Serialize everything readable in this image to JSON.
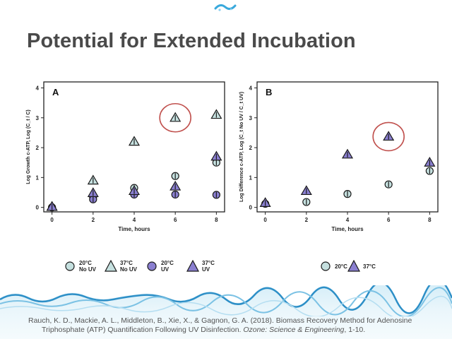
{
  "slide": {
    "title": "Potential for Extended Incubation"
  },
  "citation": {
    "line1": "Rauch, K. D., Mackie, A. L., Middleton, B., Xie, X., & Gagnon, G. A. (2018). Biomass Recovery Method for Adenosine",
    "line2_prefix": "Triphosphate (ATP) Quantification Following UV Disinfection.",
    "journal": "Ozone: Science & Engineering",
    "line2_suffix": ", 1-10."
  },
  "legend_a": [
    {
      "marker": "circle",
      "color": "#c5e0df",
      "line1": "20°C",
      "line2": "No UV"
    },
    {
      "marker": "triangle",
      "color": "#c5e0df",
      "line1": "37°C",
      "line2": "No UV"
    },
    {
      "marker": "circle",
      "color": "#8a7fd0",
      "line1": "20°C",
      "line2": "UV"
    },
    {
      "marker": "triangle",
      "color": "#8a7fd0",
      "line1": "37°C",
      "line2": "UV"
    }
  ],
  "legend_b": [
    {
      "marker": "circle",
      "color": "#c5e0df",
      "line1": "20°C",
      "line2": ""
    },
    {
      "marker": "triangle",
      "color": "#8a7fd0",
      "line1": "37°C",
      "line2": ""
    }
  ],
  "colors": {
    "no_uv_fill": "#c5e0df",
    "uv_fill": "#8a7fd0",
    "b_triangle_fill": "#8a7fd0",
    "b_circle_fill": "#c5e0df",
    "highlight_circle": "#c0504d"
  },
  "chart_data": [
    {
      "type": "scatter",
      "panel_label": "A",
      "xlabel": "Time, hours",
      "ylabel": "Log Growth c-ATP, Log (C_t / C)",
      "xlim": [
        -0.4,
        8.4
      ],
      "ylim": [
        -0.15,
        4.2
      ],
      "xticks": [
        0,
        2,
        4,
        6,
        8
      ],
      "yticks": [
        0,
        1,
        2,
        3,
        4
      ],
      "series": [
        {
          "name": "20°C No UV",
          "marker": "circle",
          "x": [
            0,
            2,
            4,
            6,
            8
          ],
          "y": [
            0.0,
            0.35,
            0.65,
            1.05,
            1.5
          ]
        },
        {
          "name": "37°C No UV",
          "marker": "triangle",
          "x": [
            0,
            2,
            4,
            6,
            8
          ],
          "y": [
            0.02,
            0.9,
            2.2,
            3.0,
            3.1
          ]
        },
        {
          "name": "20°C UV",
          "marker": "circle",
          "x": [
            0,
            2,
            4,
            6,
            8
          ],
          "y": [
            0.0,
            0.27,
            0.43,
            0.43,
            0.42
          ]
        },
        {
          "name": "37°C UV",
          "marker": "triangle",
          "x": [
            0,
            2,
            4,
            6,
            8
          ],
          "y": [
            0.02,
            0.48,
            0.55,
            0.7,
            1.7
          ]
        }
      ],
      "highlight": {
        "x": 6,
        "y": 3.0
      }
    },
    {
      "type": "scatter",
      "panel_label": "B",
      "xlabel": "Time, hours",
      "ylabel": "Log Difference c-ATP, Log (C_t No UV / C_t UV)",
      "xlim": [
        -0.4,
        8.4
      ],
      "ylim": [
        -0.15,
        4.2
      ],
      "xticks": [
        0,
        2,
        4,
        6,
        8
      ],
      "yticks": [
        0,
        1,
        2,
        3,
        4
      ],
      "series": [
        {
          "name": "20°C",
          "marker": "circle",
          "x": [
            0,
            2,
            4,
            6,
            8
          ],
          "y": [
            0.12,
            0.18,
            0.45,
            0.77,
            1.22
          ]
        },
        {
          "name": "37°C",
          "marker": "triangle",
          "x": [
            0,
            2,
            4,
            6,
            8
          ],
          "y": [
            0.15,
            0.55,
            1.77,
            2.37,
            1.5
          ]
        }
      ],
      "highlight": {
        "x": 6,
        "y": 2.37
      }
    }
  ]
}
